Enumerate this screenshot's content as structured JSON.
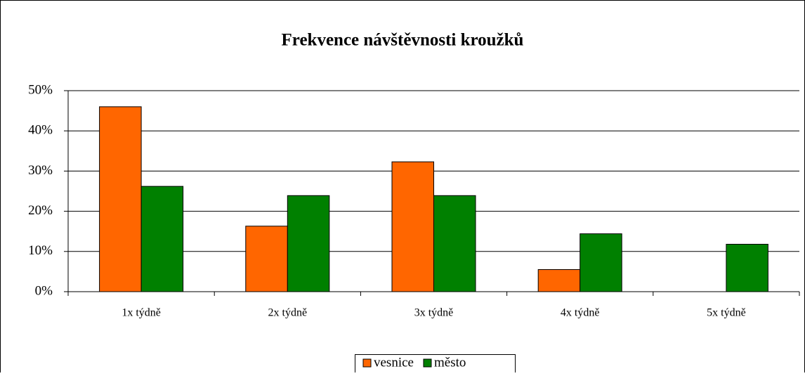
{
  "chart_data": {
    "type": "bar",
    "title": "Frekvence návštěvnosti kroužků",
    "categories": [
      "1x týdně",
      "2x týdně",
      "3x týdně",
      "4x týdně",
      "5x týdně"
    ],
    "series": [
      {
        "name": "vesnice",
        "color": "#ff6600",
        "values": [
          46,
          16.3,
          32.3,
          5.5,
          0
        ]
      },
      {
        "name": "město",
        "color": "#008000",
        "values": [
          26.2,
          23.9,
          23.9,
          14.4,
          11.8
        ]
      }
    ],
    "ylim": [
      0,
      50
    ],
    "yticks": [
      {
        "value": 0,
        "label": "0%"
      },
      {
        "value": 10,
        "label": "10%"
      },
      {
        "value": 20,
        "label": "20%"
      },
      {
        "value": 30,
        "label": "30%"
      },
      {
        "value": 40,
        "label": "40%"
      },
      {
        "value": 50,
        "label": "50%"
      }
    ],
    "grid": true,
    "legend": "bottom"
  }
}
